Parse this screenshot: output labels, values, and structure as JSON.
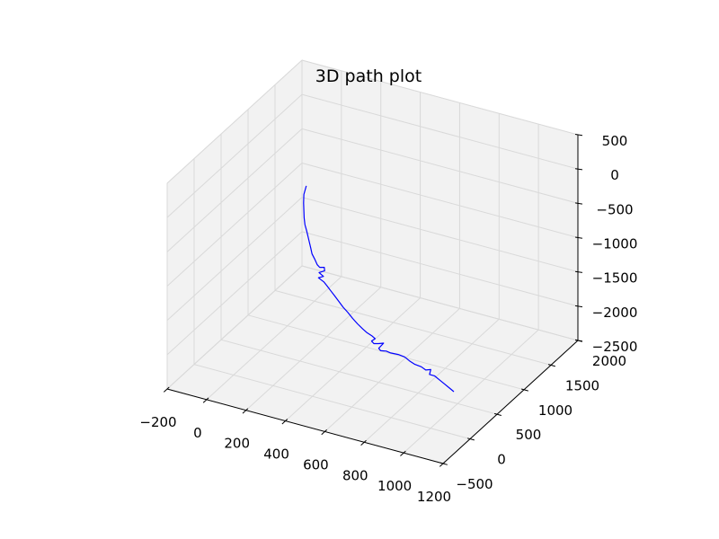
{
  "chart_data": {
    "type": "line",
    "projection": "3d",
    "title": "3D path plot",
    "x_axis": {
      "ticks": [
        -200,
        0,
        200,
        400,
        600,
        800,
        1000,
        1200
      ],
      "tick_labels": [
        "−200",
        "0",
        "200",
        "400",
        "600",
        "800",
        "1000",
        "1200"
      ]
    },
    "y_axis": {
      "ticks": [
        -500,
        0,
        500,
        1000,
        1500,
        2000
      ],
      "tick_labels": [
        "−500",
        "0",
        "500",
        "1000",
        "1500",
        "2000"
      ]
    },
    "z_axis": {
      "ticks": [
        -2500,
        -2000,
        -1500,
        -1000,
        -500,
        0,
        500
      ],
      "tick_labels": [
        "−2500",
        "−2000",
        "−1500",
        "−1000",
        "−500",
        "0",
        "500"
      ]
    },
    "grid": true,
    "line_color": "#0000ff",
    "pane_color": "#f2f2f2",
    "series": [
      {
        "color": "#0000ff",
        "points": [
          [
            150,
            800,
            -200
          ],
          [
            160,
            720,
            -260
          ],
          [
            175,
            660,
            -330
          ],
          [
            190,
            610,
            -390
          ],
          [
            205,
            560,
            -450
          ],
          [
            220,
            520,
            -510
          ],
          [
            240,
            480,
            -560
          ],
          [
            255,
            450,
            -610
          ],
          [
            270,
            420,
            -660
          ],
          [
            285,
            390,
            -710
          ],
          [
            300,
            360,
            -760
          ],
          [
            320,
            335,
            -800
          ],
          [
            340,
            310,
            -850
          ],
          [
            355,
            300,
            -870
          ],
          [
            370,
            330,
            -880
          ],
          [
            380,
            300,
            -900
          ],
          [
            360,
            270,
            -920
          ],
          [
            385,
            260,
            -950
          ],
          [
            365,
            240,
            -970
          ],
          [
            395,
            230,
            -1000
          ],
          [
            415,
            215,
            -1030
          ],
          [
            440,
            195,
            -1070
          ],
          [
            465,
            175,
            -1110
          ],
          [
            490,
            155,
            -1150
          ],
          [
            520,
            130,
            -1200
          ],
          [
            550,
            110,
            -1240
          ],
          [
            580,
            90,
            -1290
          ],
          [
            610,
            70,
            -1330
          ],
          [
            640,
            55,
            -1370
          ],
          [
            665,
            45,
            -1400
          ],
          [
            690,
            40,
            -1420
          ],
          [
            710,
            30,
            -1440
          ],
          [
            700,
            0,
            -1460
          ],
          [
            715,
            -10,
            -1480
          ],
          [
            730,
            20,
            -1490
          ],
          [
            745,
            60,
            -1500
          ],
          [
            745,
            -30,
            -1510
          ],
          [
            760,
            -50,
            -1520
          ],
          [
            780,
            -20,
            -1530
          ],
          [
            800,
            -10,
            -1550
          ],
          [
            830,
            20,
            -1570
          ],
          [
            860,
            30,
            -1590
          ],
          [
            890,
            10,
            -1610
          ],
          [
            920,
            0,
            -1630
          ],
          [
            950,
            10,
            -1650
          ],
          [
            975,
            0,
            -1670
          ],
          [
            990,
            40,
            -1680
          ],
          [
            1000,
            -20,
            -1700
          ],
          [
            1020,
            0,
            -1720
          ],
          [
            1050,
            -20,
            -1740
          ],
          [
            1080,
            -40,
            -1760
          ],
          [
            1110,
            -60,
            -1780
          ],
          [
            1140,
            -80,
            -1800
          ]
        ]
      }
    ],
    "x": [
      150,
      160,
      175,
      190,
      205,
      220,
      240,
      255,
      270,
      285,
      300,
      320,
      340,
      355,
      370,
      380,
      360,
      385,
      365,
      395,
      415,
      440,
      465,
      490,
      520,
      550,
      580,
      610,
      640,
      665,
      690,
      710,
      700,
      715,
      730,
      745,
      745,
      760,
      780,
      800,
      830,
      860,
      890,
      920,
      950,
      975,
      990,
      1000,
      1020,
      1050,
      1080,
      1110,
      1140
    ],
    "y": [
      800,
      720,
      660,
      610,
      560,
      520,
      480,
      450,
      420,
      390,
      360,
      335,
      310,
      300,
      330,
      300,
      270,
      260,
      240,
      230,
      215,
      195,
      175,
      155,
      130,
      110,
      90,
      70,
      55,
      45,
      40,
      30,
      0,
      -10,
      20,
      60,
      -30,
      -50,
      -20,
      -10,
      20,
      30,
      10,
      0,
      10,
      0,
      40,
      -20,
      0,
      -20,
      -40,
      -60,
      -80
    ],
    "z": [
      -200,
      -260,
      -330,
      -390,
      -450,
      -510,
      -560,
      -610,
      -660,
      -710,
      -760,
      -800,
      -850,
      -870,
      -880,
      -900,
      -920,
      -950,
      -970,
      -1000,
      -1030,
      -1070,
      -1110,
      -1150,
      -1200,
      -1240,
      -1290,
      -1330,
      -1370,
      -1400,
      -1420,
      -1440,
      -1460,
      -1480,
      -1490,
      -1500,
      -1510,
      -1520,
      -1530,
      -1550,
      -1570,
      -1590,
      -1610,
      -1630,
      -1650,
      -1670,
      -1680,
      -1700,
      -1720,
      -1740,
      -1760,
      -1780,
      -1800
    ]
  }
}
